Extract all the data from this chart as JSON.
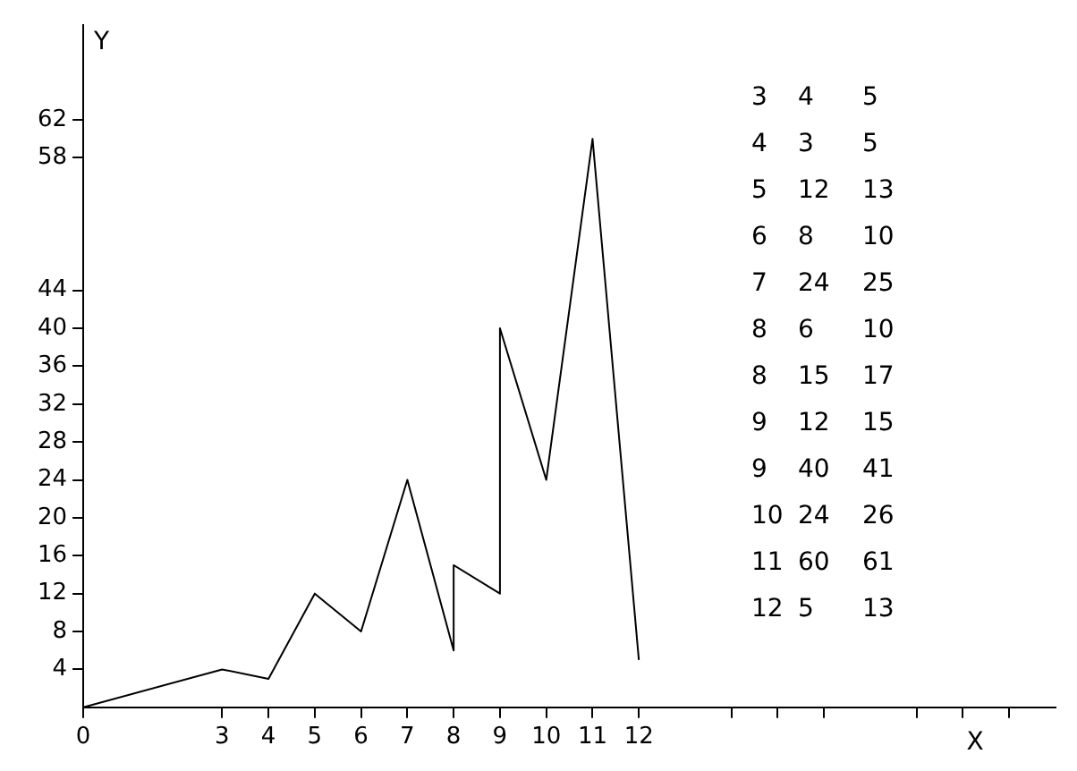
{
  "chart_data": {
    "type": "line",
    "xlabel": "X",
    "ylabel": "Y",
    "x": [
      0,
      3,
      4,
      5,
      6,
      7,
      8,
      8,
      9,
      9,
      10,
      11,
      12
    ],
    "values": [
      0,
      4,
      3,
      12,
      8,
      24,
      6,
      15,
      12,
      40,
      24,
      60,
      5
    ],
    "color": "#000000",
    "marker": "none",
    "line_style": "solid",
    "grid": false,
    "legend": false,
    "xlim": [
      0,
      21
    ],
    "xticks": [
      0,
      3,
      4,
      5,
      6,
      7,
      8,
      9,
      10,
      11,
      12,
      {
        "value": 14,
        "label": null
      },
      {
        "value": 15,
        "label": null
      },
      {
        "value": 16,
        "label": null
      },
      {
        "value": 18,
        "label": null
      },
      {
        "value": 19,
        "label": null
      },
      {
        "value": 20,
        "label": null
      }
    ],
    "ylim": [
      0,
      72
    ],
    "yticks": [
      4,
      8,
      12,
      16,
      20,
      24,
      28,
      32,
      36,
      40,
      44,
      58,
      62
    ],
    "annotations": [
      "3 4 5",
      "4 3 5",
      "5 12 13",
      "6 8 10",
      "7 24 25",
      "8 6 10",
      "8 15 17",
      "9 12 15",
      "9 40 41",
      "10 24 26",
      "11 60 61",
      "12 5 13"
    ]
  }
}
